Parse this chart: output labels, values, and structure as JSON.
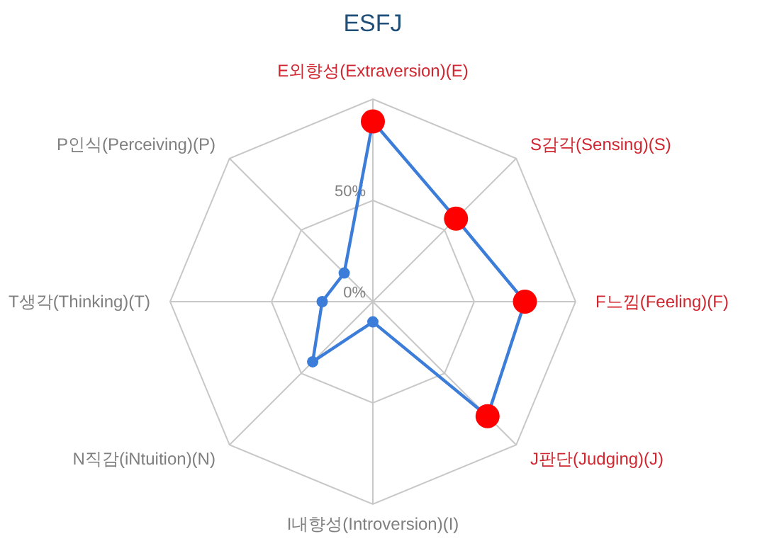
{
  "chart_data": {
    "type": "radar",
    "title": "ESFJ",
    "categories": [
      "E외향성(Extraversion)(E)",
      "S감각(Sensing)(S)",
      "F느낌(Feeling)(F)",
      "J판단(Judging)(J)",
      "I내향성(Introversion)(I)",
      "N직감(iNtuition)(N)",
      "T생각(Thinking)(T)",
      "P인식(Perceiving)(P)"
    ],
    "series": [
      {
        "color": "#3b7dd8",
        "values": [
          89,
          58,
          75,
          80,
          10,
          42,
          25,
          20
        ],
        "colors": [
          "#ff0000",
          "#ff0000",
          "#ff0000",
          "#ff0000",
          "#3b7dd8",
          "#3b7dd8",
          "#3b7dd8",
          "#3b7dd8"
        ]
      }
    ],
    "ylim": [
      0,
      100
    ],
    "yticks": [
      {
        "value": 0,
        "label": "0%"
      },
      {
        "value": 50,
        "label": "50%"
      }
    ],
    "grid": true,
    "marker": "circle",
    "line_style": "solid"
  }
}
